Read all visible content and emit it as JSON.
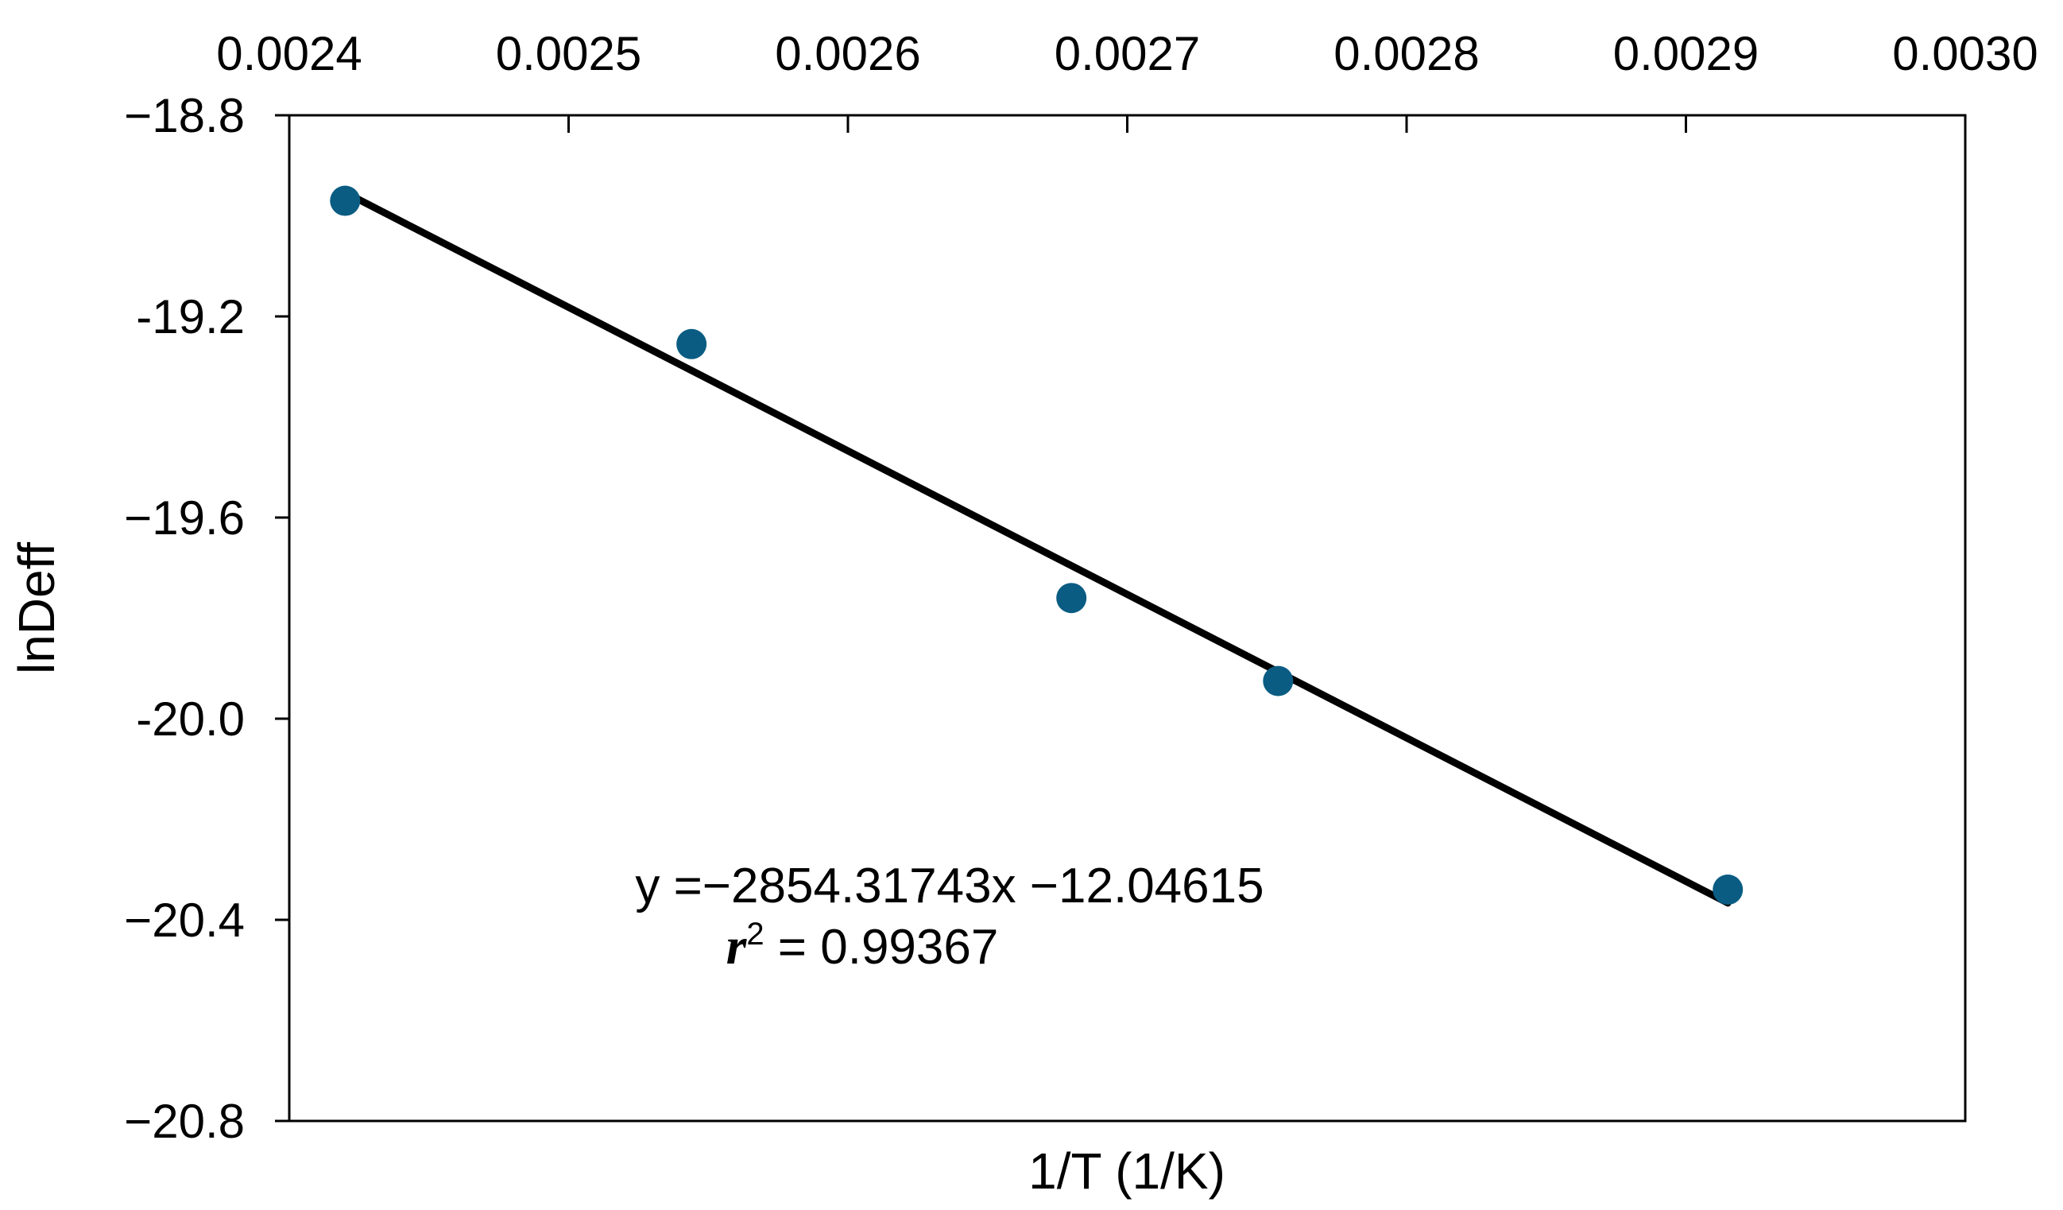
{
  "chart_data": {
    "type": "scatter",
    "title": "",
    "xlabel": "1/T (1/K)",
    "ylabel": "lnDeff",
    "xlim": [
      0.0024,
      0.003
    ],
    "ylim": [
      -20.8,
      -18.8
    ],
    "x_axis_position": "top",
    "x_ticks": [
      0.0024,
      0.0025,
      0.0026,
      0.0027,
      0.0028,
      0.0029,
      0.003
    ],
    "x_tick_labels": [
      "0.0024",
      "0.0025",
      "0.0026",
      "0.0027",
      "0.0028",
      "0.0029",
      "0.0030"
    ],
    "y_ticks": [
      -18.8,
      -19.2,
      -19.6,
      -20.0,
      -20.4,
      -20.8
    ],
    "y_tick_labels": [
      "−18.8",
      "-19.2",
      "−19.6",
      "-20.0",
      "−20.4",
      "−20.8"
    ],
    "grid": false,
    "legend": "none",
    "series": [
      {
        "values": [
          {
            "x": 0.00242,
            "y": -18.97
          },
          {
            "x": 0.002544,
            "y": -19.255
          },
          {
            "x": 0.00268,
            "y": -19.76
          },
          {
            "x": 0.002754,
            "y": -19.925
          },
          {
            "x": 0.002915,
            "y": -20.34
          }
        ],
        "color": "#0a5c82"
      }
    ],
    "trendline": {
      "slope": -2854.31743,
      "intercept": -12.04615,
      "x_range": [
        0.00242,
        0.002915
      ],
      "color": "#000000"
    },
    "annotations": {
      "equation": "y =−2854.31743x −12.04615",
      "r_symbol": "r",
      "r_superscript": "2",
      "r_value": " = 0.99367"
    }
  }
}
